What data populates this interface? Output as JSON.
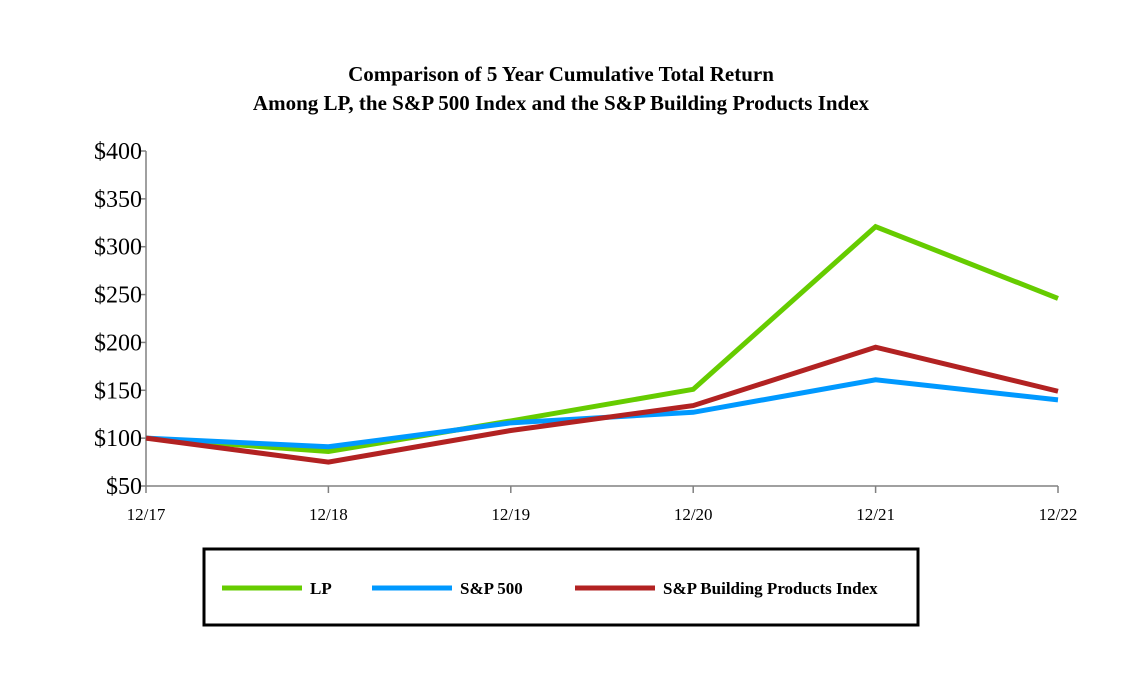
{
  "chart_data": {
    "type": "line",
    "title": "Comparison of 5 Year Cumulative Total Return",
    "subtitle": "Among LP, the S&P 500 Index and the S&P Building Products Index",
    "categories": [
      "12/17",
      "12/18",
      "12/19",
      "12/20",
      "12/21",
      "12/22"
    ],
    "y_tick_values": [
      50,
      100,
      150,
      200,
      250,
      300,
      350,
      400
    ],
    "y_tick_labels": [
      "$50",
      "$100",
      "$150",
      "$200",
      "$250",
      "$300",
      "$350",
      "$400"
    ],
    "ylim": [
      50,
      400
    ],
    "grid": false,
    "legend_position": "bottom",
    "series": [
      {
        "name": "LP",
        "color": "#66CC00",
        "values": [
          100,
          86,
          118,
          151,
          321,
          246
        ]
      },
      {
        "name": "S&P 500",
        "color": "#0099FF",
        "values": [
          100,
          91,
          116,
          127,
          161,
          140
        ]
      },
      {
        "name": "S&P Building Products Index",
        "color": "#B22222",
        "values": [
          100,
          75,
          108,
          134,
          195,
          149
        ]
      }
    ]
  }
}
